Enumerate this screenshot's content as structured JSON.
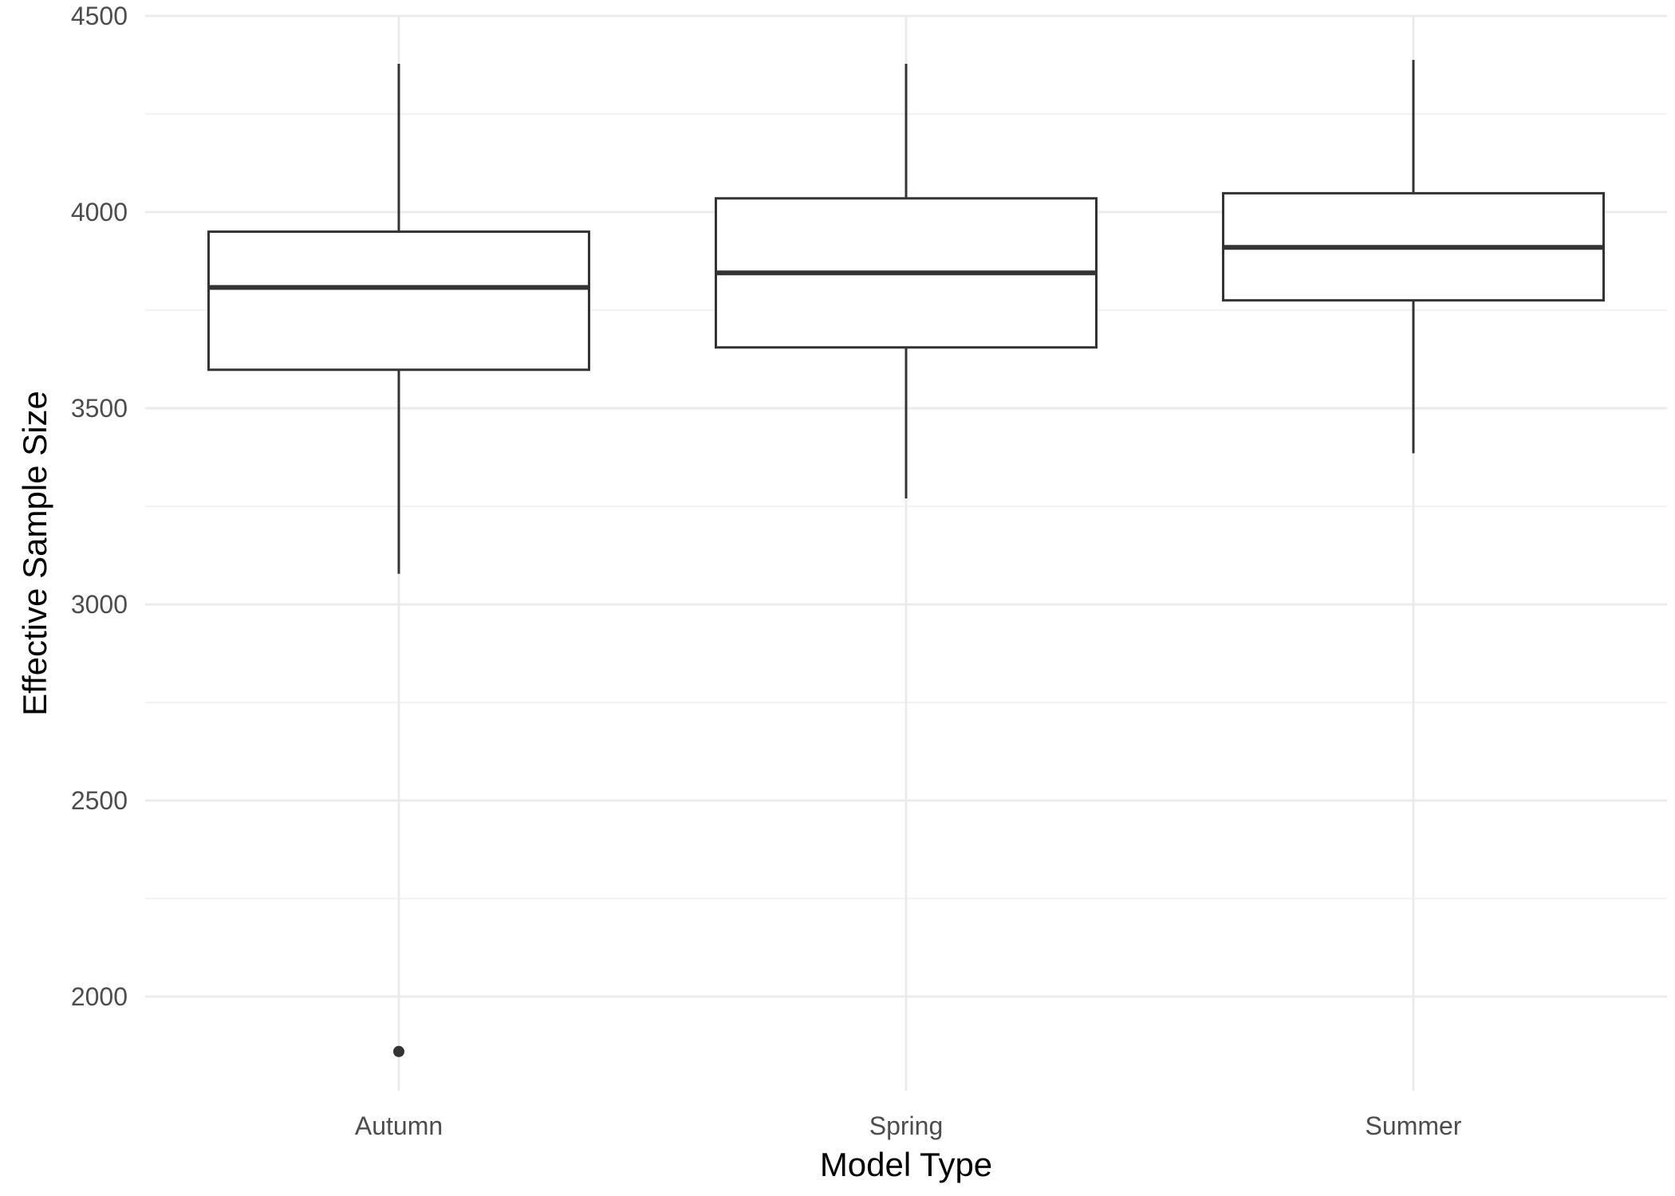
{
  "chart_data": {
    "type": "boxplot",
    "title": "",
    "xlabel": "Model Type",
    "ylabel": "Effective Sample Size",
    "categories": [
      "Autumn",
      "Spring",
      "Summer"
    ],
    "boxes": [
      {
        "category": "Autumn",
        "whisker_low": 3078,
        "q1": 3598,
        "median": 3808,
        "q3": 3950,
        "whisker_high": 4378,
        "outliers": [
          1860
        ]
      },
      {
        "category": "Spring",
        "whisker_low": 3270,
        "q1": 3655,
        "median": 3845,
        "q3": 4035,
        "whisker_high": 4378,
        "outliers": []
      },
      {
        "category": "Summer",
        "whisker_low": 3385,
        "q1": 3775,
        "median": 3910,
        "q3": 4048,
        "whisker_high": 4388,
        "outliers": []
      }
    ],
    "ylim": [
      1760,
      4500
    ],
    "yticks": [
      2000,
      2500,
      3000,
      3500,
      4000,
      4500
    ],
    "ytick_labels": [
      "2000",
      "2500",
      "3000",
      "3500",
      "4000",
      "4500"
    ],
    "grid": true,
    "legend": "none",
    "colors": {
      "box_stroke": "#333333",
      "grid_major": "#ebebeb",
      "grid_minor": "#f2f2f2",
      "background": "#ffffff"
    }
  }
}
